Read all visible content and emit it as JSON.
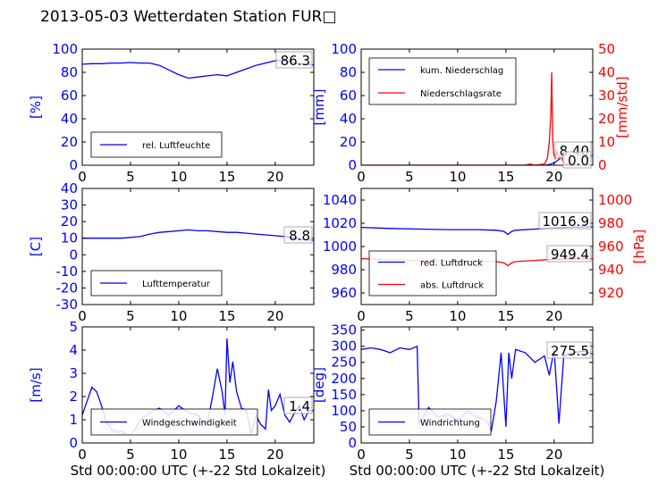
{
  "title": "2013-05-03 Wetterdaten Station FUR□",
  "colors": {
    "left_axis": "#0000ff",
    "right_axis": "#ff0000",
    "trace_blue": "#0000ff",
    "trace_red": "#ff0000",
    "trace_light": "#8080ff"
  },
  "chart_data": [
    {
      "type": "line",
      "xlim": [
        0,
        24
      ],
      "ylim": [
        0,
        100
      ],
      "xticks": [
        0,
        5,
        10,
        15,
        20
      ],
      "yticks": [
        0,
        20,
        40,
        60,
        80,
        100
      ],
      "ylabel": "[%]",
      "annotation": "86.3",
      "legend_position": "lower-left",
      "series": [
        {
          "name": "rel. Luftfeuchte",
          "color": "#0000ff",
          "x": [
            0,
            1,
            2,
            3,
            4,
            5,
            6,
            7,
            8,
            9,
            10,
            11,
            12,
            13,
            14,
            15,
            16,
            17,
            18,
            19,
            20,
            21,
            22,
            23,
            24
          ],
          "values": [
            87,
            87.5,
            87.5,
            88,
            88,
            88.5,
            88,
            88,
            86,
            82,
            78,
            75,
            76,
            77,
            78,
            77,
            80,
            83,
            86,
            88,
            90,
            90,
            88,
            87,
            86.3
          ]
        }
      ]
    },
    {
      "type": "line",
      "xlim": [
        0,
        24
      ],
      "ylim": [
        0,
        100
      ],
      "y2lim": [
        0,
        50
      ],
      "xticks": [
        0,
        5,
        10,
        15,
        20
      ],
      "yticks": [
        0,
        20,
        40,
        60,
        80,
        100
      ],
      "y2ticks": [
        0,
        10,
        20,
        30,
        40,
        50
      ],
      "ylabel": "[mm]",
      "y2label": "[mm/std]",
      "annotations": [
        "8.40",
        "0.0"
      ],
      "legend_position": "upper-left",
      "series": [
        {
          "name": "kum. Niederschlag",
          "color": "#0000ff",
          "axis": "left",
          "x": [
            0,
            19,
            19.5,
            20,
            20.5,
            21,
            24
          ],
          "values": [
            0,
            0,
            0.5,
            2,
            5,
            8.4,
            8.4
          ]
        },
        {
          "name": "Niederschlagsrate",
          "color": "#ff0000",
          "axis": "right",
          "x": [
            0,
            17,
            17.5,
            18,
            19,
            19.3,
            19.5,
            19.65,
            19.75,
            19.85,
            19.95,
            20.1,
            20.3,
            20.5,
            20.7,
            20.9,
            21.2,
            22,
            24
          ],
          "values": [
            0,
            0,
            0.5,
            0,
            0.5,
            3,
            10,
            22,
            40,
            12,
            5,
            3,
            6,
            3,
            4,
            2,
            0.5,
            0,
            0
          ]
        }
      ]
    },
    {
      "type": "line",
      "xlim": [
        0,
        24
      ],
      "ylim": [
        -30,
        40
      ],
      "xticks": [
        0,
        5,
        10,
        15,
        20
      ],
      "yticks": [
        -30,
        -20,
        -10,
        0,
        10,
        20,
        30,
        40
      ],
      "ylabel": "[C]",
      "annotation": "8.8",
      "legend_position": "lower-left",
      "series": [
        {
          "name": "Lufttemperatur",
          "color": "#0000ff",
          "x": [
            0,
            2,
            4,
            5,
            6,
            7,
            8,
            9,
            10,
            11,
            12,
            13,
            14,
            15,
            16,
            17,
            18,
            19,
            20,
            21,
            22,
            23,
            24
          ],
          "values": [
            10,
            10,
            10,
            10.5,
            11,
            12.5,
            13.5,
            14,
            14.5,
            15,
            14.5,
            14.5,
            14,
            13.5,
            13.5,
            13,
            12.5,
            12,
            11.5,
            11,
            10,
            9,
            8.8
          ]
        }
      ]
    },
    {
      "type": "line",
      "xlim": [
        0,
        24
      ],
      "ylim": [
        950,
        1050
      ],
      "y2lim": [
        910,
        1010
      ],
      "xticks": [
        0,
        5,
        10,
        15,
        20
      ],
      "yticks": [
        960,
        980,
        1000,
        1020,
        1040
      ],
      "y2ticks": [
        920,
        940,
        960,
        980,
        1000
      ],
      "ylabel": "",
      "y2label": "[hPa]",
      "annotations": [
        "1016.9",
        "949.4"
      ],
      "legend_position": "lower-left",
      "series": [
        {
          "name": "red. Luftdruck",
          "color": "#0000ff",
          "axis": "left",
          "x": [
            0,
            3,
            6,
            9,
            12,
            14,
            14.8,
            15.2,
            15.6,
            16,
            18,
            20,
            22,
            24
          ],
          "values": [
            1016.5,
            1015.5,
            1015,
            1014.5,
            1014.5,
            1014,
            1013,
            1010.5,
            1013,
            1014,
            1015,
            1016,
            1016.8,
            1016.9
          ]
        },
        {
          "name": "abs. Luftdruck",
          "color": "#ff0000",
          "axis": "right",
          "x": [
            0,
            3,
            6,
            9,
            12,
            14,
            14.8,
            15.2,
            15.6,
            16,
            18,
            20,
            22,
            24
          ],
          "values": [
            949.5,
            948.5,
            948,
            947.5,
            947.5,
            947,
            946,
            943.5,
            946,
            947,
            948,
            949,
            949.3,
            949.4
          ]
        }
      ]
    },
    {
      "type": "line",
      "xlim": [
        0,
        24
      ],
      "ylim": [
        0,
        5
      ],
      "xticks": [
        0,
        5,
        10,
        15,
        20
      ],
      "yticks": [
        0,
        1,
        2,
        3,
        4,
        5
      ],
      "ylabel": "[m/s]",
      "xlabel": "Std 00:00:00 UTC (+-22 Std Lokalzeit)",
      "annotation": "1.4",
      "legend_position": "lower-left",
      "series": [
        {
          "name": "Windgeschwindigkeit",
          "color": "#0000ff",
          "x": [
            0,
            0.5,
            1,
            1.5,
            2,
            2.5,
            3,
            3.5,
            4,
            4.5,
            5,
            5.5,
            6,
            7,
            8,
            9,
            10,
            11,
            12,
            12.5,
            13,
            13.5,
            14,
            14.5,
            14.8,
            15,
            15.3,
            15.6,
            16,
            16.5,
            17,
            17.5,
            18,
            18.5,
            19,
            19.3,
            19.6,
            20,
            20.5,
            21,
            21.5,
            22,
            22.5,
            23,
            23.5,
            24
          ],
          "values": [
            1.2,
            1.8,
            2.4,
            2.2,
            1.6,
            0.9,
            0.6,
            0.5,
            0.5,
            0.4,
            0.4,
            0.6,
            1,
            1.3,
            1.5,
            1.2,
            1.6,
            1.3,
            1.2,
            0.9,
            0.9,
            2,
            3.2,
            2.2,
            1.2,
            4.5,
            2.6,
            3.5,
            2.2,
            1.5,
            1.4,
            0.4,
            1.2,
            0.8,
            0.6,
            2.3,
            1.4,
            1.6,
            2.1,
            1.2,
            0.9,
            1.3,
            1.6,
            1,
            1.4,
            1.4
          ]
        },
        {
          "name": "",
          "color": "#8080ff",
          "x": [
            2,
            3,
            4,
            5,
            6,
            7,
            8,
            9,
            10,
            11,
            12,
            13
          ],
          "values": [
            0.7,
            0.5,
            0.4,
            0.4,
            0.7,
            0.9,
            1,
            0.9,
            1.1,
            1,
            0.9,
            0.8
          ]
        }
      ]
    },
    {
      "type": "line",
      "xlim": [
        0,
        24
      ],
      "ylim": [
        0,
        360
      ],
      "xticks": [
        0,
        5,
        10,
        15,
        20
      ],
      "yticks": [
        0,
        50,
        100,
        150,
        200,
        250,
        300,
        350
      ],
      "ylabel": "[deg]",
      "xlabel": "Std 00:00:00 UTC (+-22 Std Lokalzeit)",
      "annotation": "275.5",
      "legend_position": "lower-left",
      "series": [
        {
          "name": "Windrichtung",
          "color": "#0000ff",
          "x": [
            0,
            1,
            2,
            3,
            4,
            5,
            5.8,
            6,
            7,
            8,
            9,
            10,
            11,
            12,
            13,
            13.5,
            14,
            14.5,
            15,
            15.3,
            15.6,
            16,
            17,
            18,
            19,
            19.5,
            20,
            20.5,
            21,
            22,
            23,
            24
          ],
          "values": [
            290,
            295,
            290,
            280,
            295,
            290,
            300,
            60,
            110,
            80,
            90,
            70,
            100,
            80,
            70,
            40,
            130,
            280,
            50,
            280,
            200,
            290,
            280,
            250,
            270,
            210,
            290,
            60,
            270,
            280,
            285,
            275.5
          ]
        },
        {
          "name": "",
          "color": "#8080ff",
          "x": [
            6,
            7,
            8,
            9,
            10,
            11,
            12,
            13,
            13.5
          ],
          "values": [
            70,
            90,
            85,
            80,
            75,
            90,
            85,
            70,
            60
          ]
        }
      ]
    }
  ]
}
